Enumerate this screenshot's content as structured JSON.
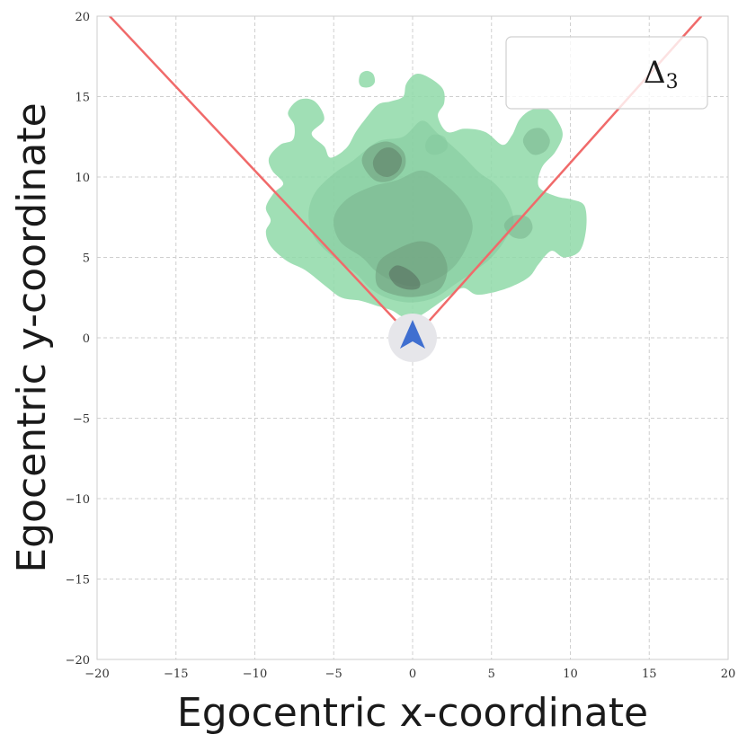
{
  "chart_data": {
    "type": "density_contour",
    "xlabel": "Egocentric x-coordinate",
    "ylabel": "Egocentric y-coordinate",
    "xlim": [
      -20,
      20
    ],
    "ylim": [
      -20,
      20
    ],
    "xticks": [
      -20,
      -15,
      -10,
      -5,
      0,
      5,
      10,
      15,
      20
    ],
    "yticks": [
      -20,
      -15,
      -10,
      -5,
      0,
      5,
      10,
      15,
      20
    ],
    "grid": true,
    "legend": {
      "label": "Δ",
      "subscript": "3",
      "placement": "top-right"
    },
    "field_of_view_lines": [
      {
        "points": [
          [
            1,
            1
          ],
          [
            -19.2,
            20
          ]
        ],
        "color": "#f06a6a"
      },
      {
        "points": [
          [
            1,
            1
          ],
          [
            18.3,
            20
          ]
        ],
        "color": "#f06a6a"
      }
    ],
    "agent_marker": {
      "x": 0,
      "y": 0,
      "color": "#3f6fd0",
      "halo_color": "#e6e6ea"
    },
    "density_color": "#8fd9a8",
    "density_regions": [
      {
        "level": 1,
        "outline": [
          [
            -4.5,
            2.5
          ],
          [
            -5.5,
            3.2
          ],
          [
            -6.8,
            4.2
          ],
          [
            -8,
            4.8
          ],
          [
            -9,
            5.7
          ],
          [
            -9.3,
            6.6
          ],
          [
            -9,
            7.3
          ],
          [
            -9.3,
            8.1
          ],
          [
            -8.8,
            9
          ],
          [
            -8.2,
            9.6
          ],
          [
            -8.9,
            10.4
          ],
          [
            -9.1,
            11.2
          ],
          [
            -8.4,
            12
          ],
          [
            -7.6,
            12.3
          ],
          [
            -7.5,
            13.2
          ],
          [
            -7.9,
            14
          ],
          [
            -7.2,
            14.8
          ],
          [
            -6.2,
            14.7
          ],
          [
            -5.6,
            13.6
          ],
          [
            -6.4,
            12.7
          ],
          [
            -5.6,
            11.9
          ],
          [
            -5.2,
            11.2
          ],
          [
            -4.2,
            11.8
          ],
          [
            -3.6,
            12.8
          ],
          [
            -3,
            13.6
          ],
          [
            -2.2,
            14.5
          ],
          [
            -1.4,
            14.7
          ],
          [
            -0.6,
            15
          ],
          [
            -0.4,
            15.8
          ],
          [
            0.2,
            16.4
          ],
          [
            1,
            16.2
          ],
          [
            1.9,
            15.5
          ],
          [
            2,
            14.6
          ],
          [
            1.6,
            13.8
          ],
          [
            2.2,
            12.8
          ],
          [
            3.3,
            13
          ],
          [
            4.6,
            12.8
          ],
          [
            5.7,
            12
          ],
          [
            6.3,
            12.6
          ],
          [
            6.8,
            13.6
          ],
          [
            7.6,
            14.2
          ],
          [
            8.6,
            14.2
          ],
          [
            9.3,
            13.3
          ],
          [
            9.5,
            12.5
          ],
          [
            9,
            11.5
          ],
          [
            8.2,
            10.6
          ],
          [
            8,
            9.4
          ],
          [
            9.1,
            8.8
          ],
          [
            10.1,
            8.6
          ],
          [
            10.9,
            8.2
          ],
          [
            11,
            6.8
          ],
          [
            10.6,
            5.4
          ],
          [
            9.6,
            5
          ],
          [
            8.8,
            5.4
          ],
          [
            8,
            4.6
          ],
          [
            7.4,
            3.8
          ],
          [
            6.3,
            3.2
          ],
          [
            5,
            2.8
          ],
          [
            4,
            2.7
          ],
          [
            3.2,
            3.1
          ],
          [
            2.3,
            2.6
          ],
          [
            1.3,
            1.9
          ],
          [
            0.3,
            1.3
          ],
          [
            -0.6,
            1.3
          ],
          [
            -1.3,
            1.7
          ],
          [
            -2.3,
            2
          ],
          [
            -3.3,
            2.3
          ]
        ]
      },
      {
        "level": 1,
        "outline": [
          [
            -3.3,
            16.4
          ],
          [
            -2.9,
            16.6
          ],
          [
            -2.5,
            16.4
          ],
          [
            -2.4,
            15.9
          ],
          [
            -2.7,
            15.6
          ],
          [
            -3.2,
            15.6
          ],
          [
            -3.4,
            15.9
          ]
        ]
      },
      {
        "level": 2,
        "outline": [
          [
            -3.6,
            4
          ],
          [
            -5,
            5
          ],
          [
            -6.2,
            6.2
          ],
          [
            -6.6,
            7.6
          ],
          [
            -6.2,
            9
          ],
          [
            -5,
            10.2
          ],
          [
            -3.8,
            11
          ],
          [
            -2.2,
            12.2
          ],
          [
            -0.6,
            12.5
          ],
          [
            0.6,
            13.5
          ],
          [
            1.6,
            12.7
          ],
          [
            3,
            11.5
          ],
          [
            4.2,
            10.3
          ],
          [
            5.2,
            9.6
          ],
          [
            6,
            8.6
          ],
          [
            6.4,
            7.2
          ],
          [
            5.8,
            6
          ],
          [
            5,
            5
          ],
          [
            4,
            4.2
          ],
          [
            2.8,
            3.4
          ],
          [
            1.4,
            2.5
          ],
          [
            0,
            2.2
          ],
          [
            -1.4,
            2.4
          ],
          [
            -2.6,
            3
          ]
        ]
      },
      {
        "level": 3,
        "outline": [
          [
            -3.2,
            5
          ],
          [
            -4.6,
            6
          ],
          [
            -5,
            7.4
          ],
          [
            -4.2,
            8.6
          ],
          [
            -2.6,
            9.4
          ],
          [
            -1,
            9.8
          ],
          [
            0.6,
            10.4
          ],
          [
            2,
            9.6
          ],
          [
            3.2,
            8.4
          ],
          [
            3.8,
            7
          ],
          [
            3.4,
            5.6
          ],
          [
            2.6,
            4.4
          ],
          [
            1.4,
            3.6
          ],
          [
            0,
            3.2
          ],
          [
            -1.4,
            3.6
          ],
          [
            -2.4,
            4.2
          ]
        ]
      },
      {
        "level": 4,
        "outline": [
          [
            -2.2,
            3.2
          ],
          [
            -2.2,
            4.6
          ],
          [
            -1.2,
            5.4
          ],
          [
            0.4,
            6
          ],
          [
            1.6,
            5.6
          ],
          [
            2.2,
            4.4
          ],
          [
            1.8,
            3.1
          ],
          [
            0.6,
            2.6
          ],
          [
            -0.8,
            2.6
          ]
        ]
      },
      {
        "level": 4,
        "outline": [
          [
            -3.2,
            10.9
          ],
          [
            -2.8,
            11.8
          ],
          [
            -1.6,
            12.2
          ],
          [
            -0.6,
            11.6
          ],
          [
            -0.5,
            10.6
          ],
          [
            -1.3,
            9.8
          ],
          [
            -2.4,
            9.8
          ]
        ]
      },
      {
        "level": 5,
        "outline": [
          [
            -2.5,
            11
          ],
          [
            -2,
            11.7
          ],
          [
            -1.3,
            11.8
          ],
          [
            -0.7,
            11.2
          ],
          [
            -0.9,
            10.4
          ],
          [
            -1.6,
            10
          ],
          [
            -2.3,
            10.3
          ]
        ]
      },
      {
        "level": 6,
        "outline": [
          [
            -1.5,
            4
          ],
          [
            -1,
            4.5
          ],
          [
            -0.2,
            4.2
          ],
          [
            0.4,
            3.6
          ],
          [
            0.4,
            3.1
          ],
          [
            -0.3,
            3
          ],
          [
            -1.1,
            3.3
          ]
        ]
      },
      {
        "level": 3,
        "outline": [
          [
            7,
            12.2
          ],
          [
            7.4,
            12.9
          ],
          [
            8.2,
            13
          ],
          [
            8.7,
            12.3
          ],
          [
            8.4,
            11.6
          ],
          [
            7.6,
            11.4
          ]
        ]
      },
      {
        "level": 3,
        "outline": [
          [
            5.8,
            7
          ],
          [
            6.4,
            7.6
          ],
          [
            7.3,
            7.5
          ],
          [
            7.6,
            6.8
          ],
          [
            7.1,
            6.2
          ],
          [
            6.3,
            6.3
          ]
        ]
      },
      {
        "level": 2,
        "outline": [
          [
            0.8,
            12
          ],
          [
            1.2,
            12.6
          ],
          [
            2,
            12.5
          ],
          [
            2.2,
            11.8
          ],
          [
            1.6,
            11.4
          ],
          [
            1,
            11.5
          ]
        ]
      }
    ]
  }
}
